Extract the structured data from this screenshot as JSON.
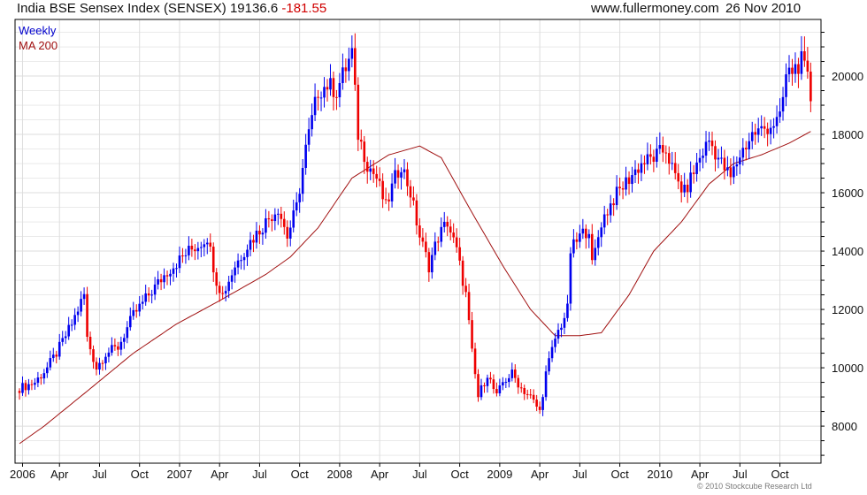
{
  "header": {
    "title": "India BSE Sensex Index (SENSEX) 19136.6",
    "change": "-181.55",
    "site": "www.fullermoney.com",
    "date": "26 Nov 2010"
  },
  "legend": {
    "weekly": "Weekly",
    "ma": "MA 200"
  },
  "copyright": "© 2010 Stockcube Research Ltd",
  "colors": {
    "up": "#0000ee",
    "down": "#ee0000",
    "ma": "#a01010",
    "grid": "#dddddd"
  },
  "chart_data": {
    "type": "candlestick",
    "title": "India BSE Sensex Index (SENSEX)",
    "frequency": "Weekly",
    "start_week": "2005-12-30",
    "ylim": [
      6730,
      21940
    ],
    "y_ticks": [
      8000,
      10000,
      12000,
      14000,
      16000,
      18000,
      20000
    ],
    "y_tick_labels": [
      "8000",
      "10000",
      "12000",
      "14000",
      "16000",
      "18000",
      "20000"
    ],
    "x_tick_labels": [
      "2006",
      "Apr",
      "Jul",
      "Oct",
      "2007",
      "Apr",
      "Jul",
      "Oct",
      "2008",
      "Apr",
      "Jul",
      "Oct",
      "2009",
      "Apr",
      "Jul",
      "Oct",
      "2010",
      "Apr",
      "Jul",
      "Oct"
    ],
    "x_tick_weeks": [
      1,
      13,
      26,
      39,
      52,
      65,
      78,
      91,
      104,
      117,
      130,
      143,
      156,
      169,
      182,
      195,
      208,
      221,
      234,
      247
    ],
    "close_samples_week_value": [
      [
        0,
        9300
      ],
      [
        5,
        9500
      ],
      [
        9,
        10000
      ],
      [
        12,
        10500
      ],
      [
        17,
        11500
      ],
      [
        21,
        12500
      ],
      [
        22,
        11000
      ],
      [
        25,
        10000
      ],
      [
        28,
        10500
      ],
      [
        32,
        10700
      ],
      [
        37,
        11800
      ],
      [
        42,
        12500
      ],
      [
        48,
        13300
      ],
      [
        55,
        14000
      ],
      [
        58,
        14200
      ],
      [
        61,
        14500
      ],
      [
        64,
        13000
      ],
      [
        66,
        12500
      ],
      [
        70,
        13500
      ],
      [
        74,
        14200
      ],
      [
        80,
        15000
      ],
      [
        84,
        15500
      ],
      [
        87,
        14500
      ],
      [
        90,
        15500
      ],
      [
        93,
        17500
      ],
      [
        97,
        19500
      ],
      [
        100,
        19700
      ],
      [
        103,
        19500
      ],
      [
        108,
        20800
      ],
      [
        110,
        18000
      ],
      [
        113,
        17000
      ],
      [
        116,
        16500
      ],
      [
        119,
        15500
      ],
      [
        122,
        16500
      ],
      [
        124,
        17000
      ],
      [
        127,
        16000
      ],
      [
        130,
        14500
      ],
      [
        133,
        13500
      ],
      [
        136,
        14500
      ],
      [
        139,
        15000
      ],
      [
        142,
        14000
      ],
      [
        145,
        12500
      ],
      [
        147,
        10500
      ],
      [
        149,
        9000
      ],
      [
        152,
        9800
      ],
      [
        155,
        9000
      ],
      [
        157,
        9500
      ],
      [
        160,
        9800
      ],
      [
        163,
        9300
      ],
      [
        166,
        9000
      ],
      [
        169,
        8500
      ],
      [
        171,
        9800
      ],
      [
        174,
        11000
      ],
      [
        178,
        12000
      ],
      [
        179,
        14000
      ],
      [
        182,
        14500
      ],
      [
        185,
        14800
      ],
      [
        186,
        13500
      ],
      [
        189,
        15000
      ],
      [
        193,
        15800
      ],
      [
        198,
        16500
      ],
      [
        202,
        17000
      ],
      [
        206,
        17200
      ],
      [
        210,
        17500
      ],
      [
        213,
        16500
      ],
      [
        216,
        16000
      ],
      [
        221,
        17200
      ],
      [
        224,
        17800
      ],
      [
        228,
        17000
      ],
      [
        231,
        16500
      ],
      [
        234,
        17300
      ],
      [
        238,
        18000
      ],
      [
        242,
        18200
      ],
      [
        247,
        18500
      ],
      [
        249,
        20000
      ],
      [
        251,
        20200
      ],
      [
        254,
        20500
      ],
      [
        256,
        19900
      ],
      [
        257,
        19137
      ]
    ],
    "ma200_samples_week_value": [
      [
        0,
        7400
      ],
      [
        8,
        8000
      ],
      [
        22,
        9200
      ],
      [
        37,
        10500
      ],
      [
        51,
        11500
      ],
      [
        65,
        12300
      ],
      [
        80,
        13200
      ],
      [
        88,
        13800
      ],
      [
        97,
        14800
      ],
      [
        108,
        16500
      ],
      [
        120,
        17300
      ],
      [
        130,
        17600
      ],
      [
        137,
        17200
      ],
      [
        146,
        15500
      ],
      [
        157,
        13500
      ],
      [
        166,
        12000
      ],
      [
        174,
        11100
      ],
      [
        182,
        11100
      ],
      [
        189,
        11200
      ],
      [
        198,
        12500
      ],
      [
        206,
        14000
      ],
      [
        215,
        15000
      ],
      [
        224,
        16300
      ],
      [
        232,
        17000
      ],
      [
        241,
        17300
      ],
      [
        250,
        17700
      ],
      [
        257,
        18100
      ]
    ],
    "last_close": 19136.6
  }
}
